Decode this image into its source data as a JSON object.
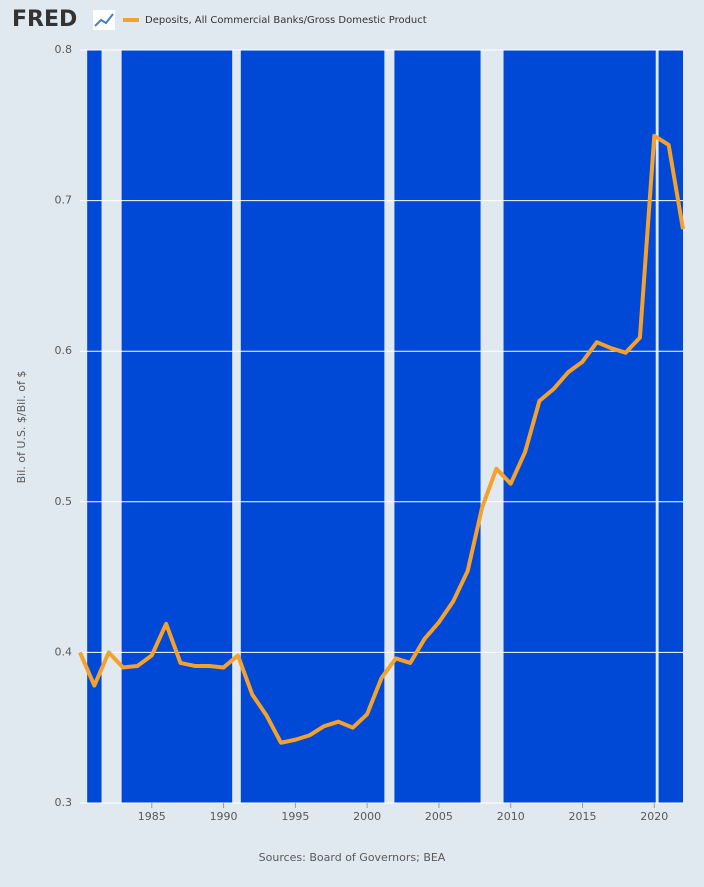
{
  "logo": "FRED",
  "chart_data": {
    "type": "line",
    "ylabel": "Bil. of U.S. $/Bil. of $",
    "source": "Sources: Board of Governors; BEA",
    "x": [
      1980,
      1981,
      1982,
      1983,
      1984,
      1985,
      1986,
      1987,
      1988,
      1989,
      1990,
      1991,
      1992,
      1993,
      1994,
      1995,
      1996,
      1997,
      1998,
      1999,
      2000,
      2001,
      2002,
      2003,
      2004,
      2005,
      2006,
      2007,
      2008,
      2009,
      2010,
      2011,
      2012,
      2013,
      2014,
      2015,
      2016,
      2017,
      2018,
      2019,
      2020,
      2021,
      2022
    ],
    "series": [
      {
        "name": "Deposits, All Commercial Banks/Gross Domestic Product",
        "color": "#f4a12e",
        "values": [
          0.4,
          0.378,
          0.4,
          0.39,
          0.391,
          0.398,
          0.419,
          0.393,
          0.391,
          0.391,
          0.39,
          0.398,
          0.372,
          0.358,
          0.34,
          0.342,
          0.345,
          0.351,
          0.354,
          0.35,
          0.359,
          0.383,
          0.396,
          0.393,
          0.409,
          0.42,
          0.434,
          0.454,
          0.496,
          0.522,
          0.512,
          0.533,
          0.567,
          0.575,
          0.586,
          0.593,
          0.606,
          0.602,
          0.599,
          0.609,
          0.743,
          0.737,
          0.681
        ]
      }
    ],
    "recessions": [
      [
        1980.0,
        1980.5
      ],
      [
        1981.5,
        1982.9
      ],
      [
        1990.6,
        1991.2
      ],
      [
        2001.2,
        2001.9
      ],
      [
        2007.9,
        2009.5
      ],
      [
        2020.1,
        2020.3
      ]
    ],
    "background_color": "#0049d6",
    "recession_color": "#e1e9f0",
    "xlim": [
      1980,
      2022
    ],
    "xticks": [
      1985,
      1990,
      1995,
      2000,
      2005,
      2010,
      2015,
      2020
    ],
    "ylim": [
      0.3,
      0.8
    ],
    "yticks": [
      0.3,
      0.4,
      0.5,
      0.6,
      0.7,
      0.8
    ],
    "grid": true
  }
}
